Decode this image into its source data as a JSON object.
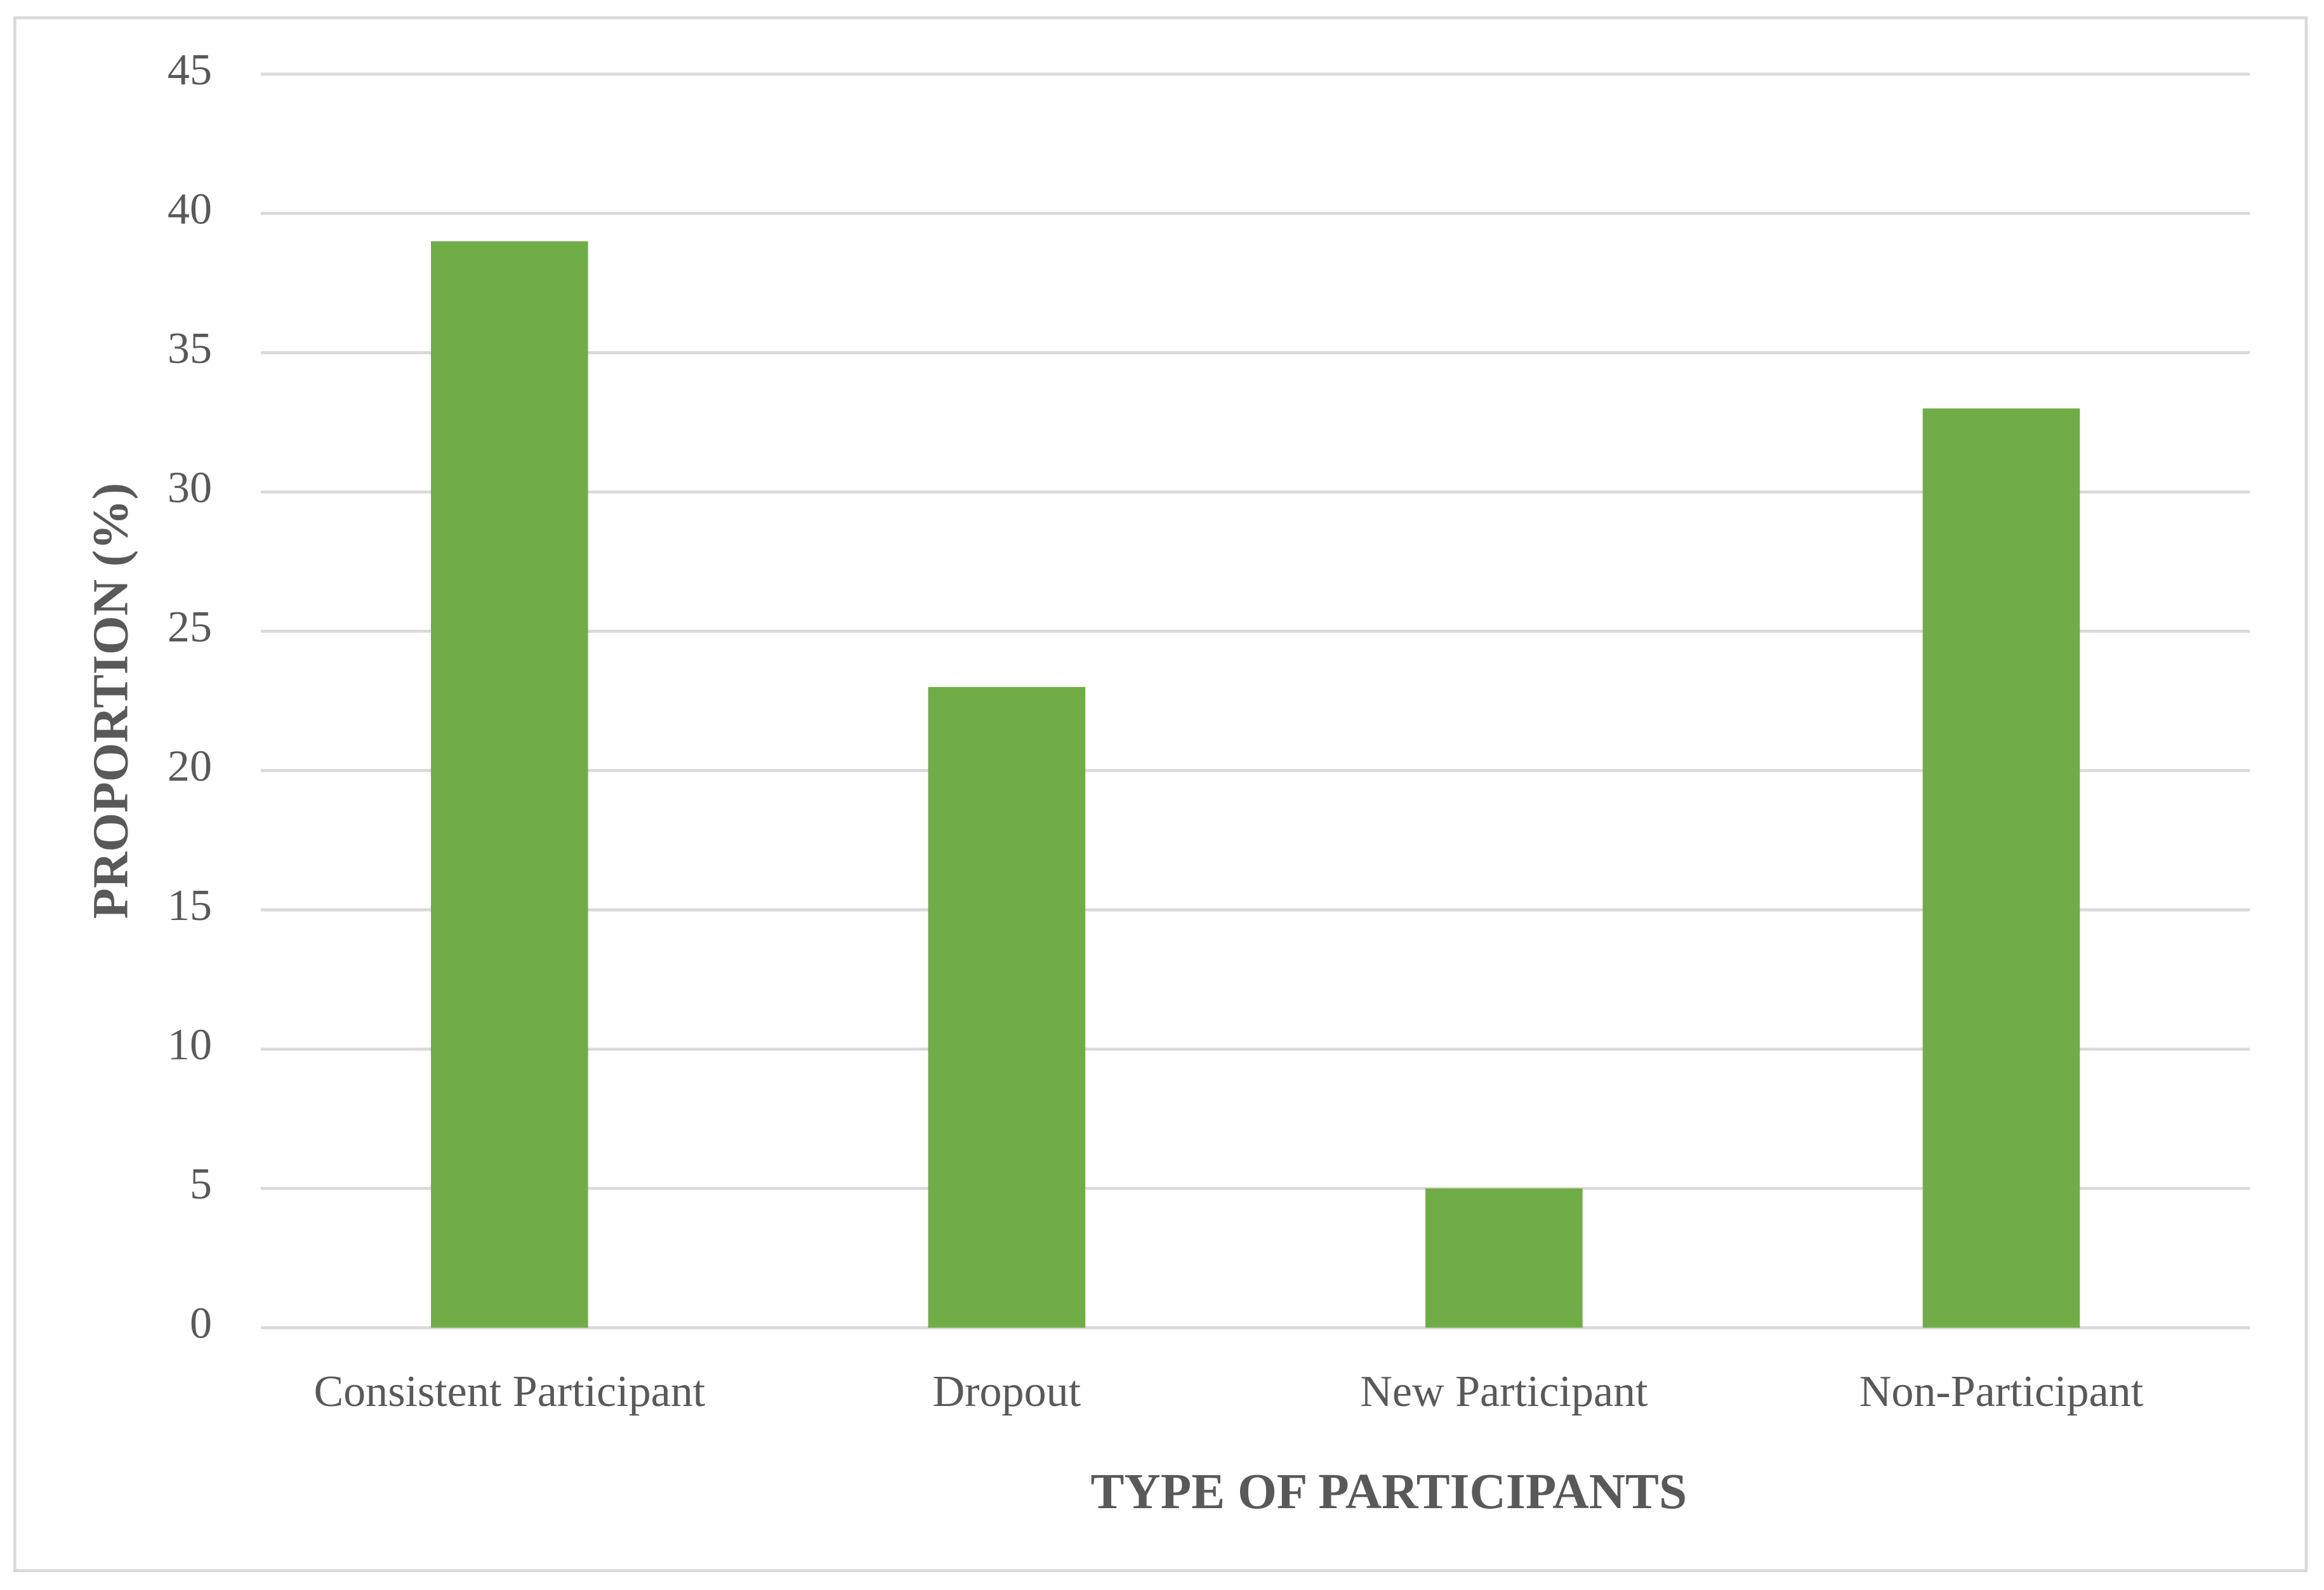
{
  "chart_data": {
    "type": "bar",
    "x_label": "TYPE OF PARTICIPANTS",
    "y_label": "PROPORTION (%)",
    "categories": [
      "Consistent Participant",
      "Dropout",
      "New Participant",
      "Non-Participant"
    ],
    "values": [
      39,
      23,
      5,
      33
    ],
    "color": "#70ad47",
    "ylim": [
      0,
      45
    ],
    "yticks": [
      0,
      5,
      10,
      15,
      20,
      25,
      30,
      35,
      40,
      45
    ],
    "grid": true
  }
}
